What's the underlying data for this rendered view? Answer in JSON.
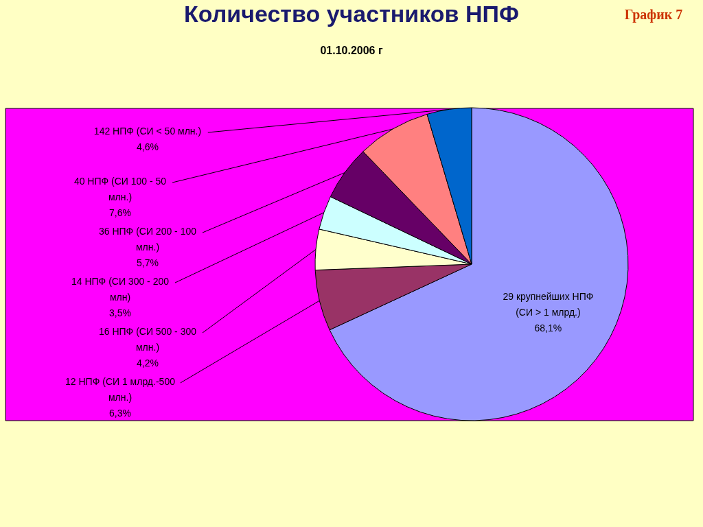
{
  "chart_data": {
    "type": "pie",
    "title": "Количество участников НПФ",
    "subtitle": "01.10.2006 г",
    "annotations": [
      "График 7"
    ],
    "categories": [
      "29 крупнейших НПФ (СИ > 1 млрд.)",
      "12 НПФ (СИ 1 млрд.-500 млн.)",
      "16 НПФ (СИ 500 - 300 млн.)",
      "14 НПФ (СИ 300 - 200 млн)",
      "36 НПФ (СИ 200 - 100 млн.)",
      "40 НПФ (СИ 100 - 50 млн.)",
      "142 НПФ (СИ < 50 млн.)"
    ],
    "values": [
      68.1,
      6.3,
      4.2,
      3.5,
      5.7,
      7.6,
      4.6
    ],
    "value_labels": [
      "68,1%",
      "6,3%",
      "4,2%",
      "3,5%",
      "5,7%",
      "7,6%",
      "4,6%"
    ],
    "colors": [
      "#9999ff",
      "#993366",
      "#ffffcc",
      "#ccffff",
      "#660066",
      "#ff8080",
      "#0066cc"
    ]
  }
}
